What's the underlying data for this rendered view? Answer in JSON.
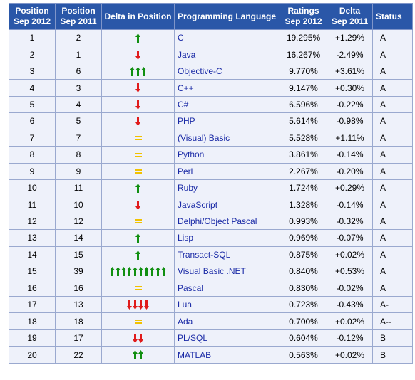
{
  "colors": {
    "header_bg": "#2a57a8",
    "up": "#118f11",
    "down": "#e01b1b",
    "same": "#f2c200",
    "link": "#1a2aa6"
  },
  "headers": {
    "pos2012": [
      "Position",
      "Sep 2012"
    ],
    "pos2011": [
      "Position",
      "Sep 2011"
    ],
    "delta_pos": "Delta in Position",
    "lang": "Programming Language",
    "ratings": [
      "Ratings",
      "Sep 2012"
    ],
    "delta": [
      "Delta",
      "Sep 2011"
    ],
    "status": "Status"
  },
  "rows": [
    {
      "p12": "1",
      "p11": "2",
      "dir": "up",
      "count": 1,
      "lang": "C",
      "rating": "19.295%",
      "delta": "+1.29%",
      "status": "A"
    },
    {
      "p12": "2",
      "p11": "1",
      "dir": "down",
      "count": 1,
      "lang": "Java",
      "rating": "16.267%",
      "delta": "-2.49%",
      "status": "A"
    },
    {
      "p12": "3",
      "p11": "6",
      "dir": "up",
      "count": 3,
      "lang": "Objective-C",
      "rating": "9.770%",
      "delta": "+3.61%",
      "status": "A"
    },
    {
      "p12": "4",
      "p11": "3",
      "dir": "down",
      "count": 1,
      "lang": "C++",
      "rating": "9.147%",
      "delta": "+0.30%",
      "status": "A"
    },
    {
      "p12": "5",
      "p11": "4",
      "dir": "down",
      "count": 1,
      "lang": "C#",
      "rating": "6.596%",
      "delta": "-0.22%",
      "status": "A"
    },
    {
      "p12": "6",
      "p11": "5",
      "dir": "down",
      "count": 1,
      "lang": "PHP",
      "rating": "5.614%",
      "delta": "-0.98%",
      "status": "A"
    },
    {
      "p12": "7",
      "p11": "7",
      "dir": "same",
      "count": 1,
      "lang": "(Visual) Basic",
      "rating": "5.528%",
      "delta": "+1.11%",
      "status": "A"
    },
    {
      "p12": "8",
      "p11": "8",
      "dir": "same",
      "count": 1,
      "lang": "Python",
      "rating": "3.861%",
      "delta": "-0.14%",
      "status": "A"
    },
    {
      "p12": "9",
      "p11": "9",
      "dir": "same",
      "count": 1,
      "lang": "Perl",
      "rating": "2.267%",
      "delta": "-0.20%",
      "status": "A"
    },
    {
      "p12": "10",
      "p11": "11",
      "dir": "up",
      "count": 1,
      "lang": "Ruby",
      "rating": "1.724%",
      "delta": "+0.29%",
      "status": "A"
    },
    {
      "p12": "11",
      "p11": "10",
      "dir": "down",
      "count": 1,
      "lang": "JavaScript",
      "rating": "1.328%",
      "delta": "-0.14%",
      "status": "A"
    },
    {
      "p12": "12",
      "p11": "12",
      "dir": "same",
      "count": 1,
      "lang": "Delphi/Object Pascal",
      "rating": "0.993%",
      "delta": "-0.32%",
      "status": "A"
    },
    {
      "p12": "13",
      "p11": "14",
      "dir": "up",
      "count": 1,
      "lang": "Lisp",
      "rating": "0.969%",
      "delta": "-0.07%",
      "status": "A"
    },
    {
      "p12": "14",
      "p11": "15",
      "dir": "up",
      "count": 1,
      "lang": "Transact-SQL",
      "rating": "0.875%",
      "delta": "+0.02%",
      "status": "A"
    },
    {
      "p12": "15",
      "p11": "39",
      "dir": "up",
      "count": 10,
      "lang": "Visual Basic .NET",
      "rating": "0.840%",
      "delta": "+0.53%",
      "status": "A"
    },
    {
      "p12": "16",
      "p11": "16",
      "dir": "same",
      "count": 1,
      "lang": "Pascal",
      "rating": "0.830%",
      "delta": "-0.02%",
      "status": "A"
    },
    {
      "p12": "17",
      "p11": "13",
      "dir": "down",
      "count": 4,
      "lang": "Lua",
      "rating": "0.723%",
      "delta": "-0.43%",
      "status": "A-"
    },
    {
      "p12": "18",
      "p11": "18",
      "dir": "same",
      "count": 1,
      "lang": "Ada",
      "rating": "0.700%",
      "delta": "+0.02%",
      "status": "A--"
    },
    {
      "p12": "19",
      "p11": "17",
      "dir": "down",
      "count": 2,
      "lang": "PL/SQL",
      "rating": "0.604%",
      "delta": "-0.12%",
      "status": "B"
    },
    {
      "p12": "20",
      "p11": "22",
      "dir": "up",
      "count": 2,
      "lang": "MATLAB",
      "rating": "0.563%",
      "delta": "+0.02%",
      "status": "B"
    }
  ]
}
